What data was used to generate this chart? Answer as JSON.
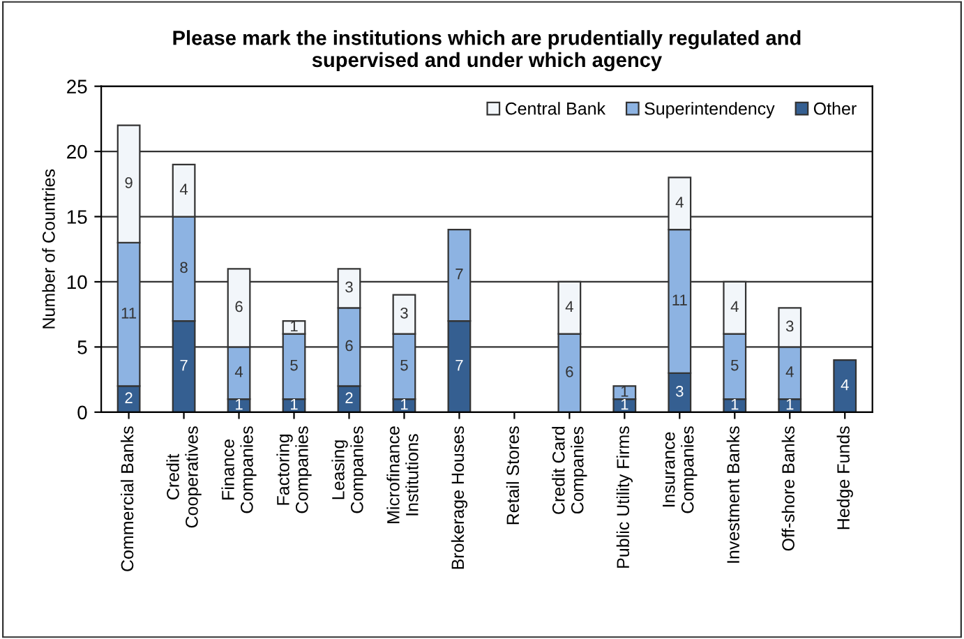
{
  "chart_data": {
    "type": "bar",
    "stacked": true,
    "title": "Please mark the institutions which are prudentially regulated and\nsupervised and under which agency",
    "ylabel": "Number of Countries",
    "categories": [
      "Commercial Banks",
      "Credit\nCooperatives",
      "Finance\nCompanies",
      "Factoring\nCompanies",
      "Leasing\nCompanies",
      "Microfinance\nInstitutions",
      "Brokerage Houses",
      "Retail Stores",
      "Credit Card\nCompanies",
      "Public Utility Firms",
      "Insurance\nCompanies",
      "Investment Banks",
      "Off-shore Banks",
      "Hedge Funds"
    ],
    "series": [
      {
        "name": "Other",
        "color": "#355f91",
        "values": [
          2,
          7,
          1,
          1,
          2,
          1,
          7,
          0,
          0,
          1,
          3,
          1,
          1,
          4
        ],
        "value_labels": [
          "2",
          "7",
          "1",
          "1",
          "2",
          "1",
          "7",
          null,
          null,
          "1",
          "3",
          "1",
          "1",
          "4"
        ]
      },
      {
        "name": "Superintendency",
        "color": "#8db3e2",
        "values": [
          11,
          8,
          4,
          5,
          6,
          5,
          7,
          0,
          6,
          1,
          11,
          5,
          4,
          0
        ],
        "value_labels": [
          "11",
          "8",
          "4",
          "5",
          "6",
          "5",
          "7",
          null,
          "6",
          "1",
          "11",
          "5",
          "4",
          null
        ]
      },
      {
        "name": "Central Bank",
        "color": "#f2f6fa",
        "values": [
          9,
          4,
          6,
          1,
          3,
          3,
          0,
          0,
          4,
          0,
          4,
          4,
          3,
          0
        ],
        "value_labels": [
          "9",
          "4",
          "6",
          "1",
          "3",
          "3",
          null,
          null,
          "4",
          null,
          "4",
          "4",
          "3",
          null
        ]
      }
    ],
    "ylim": [
      0,
      25
    ],
    "yticks": [
      0,
      5,
      10,
      15,
      20,
      25
    ],
    "grid": "y",
    "legend": "top right"
  }
}
